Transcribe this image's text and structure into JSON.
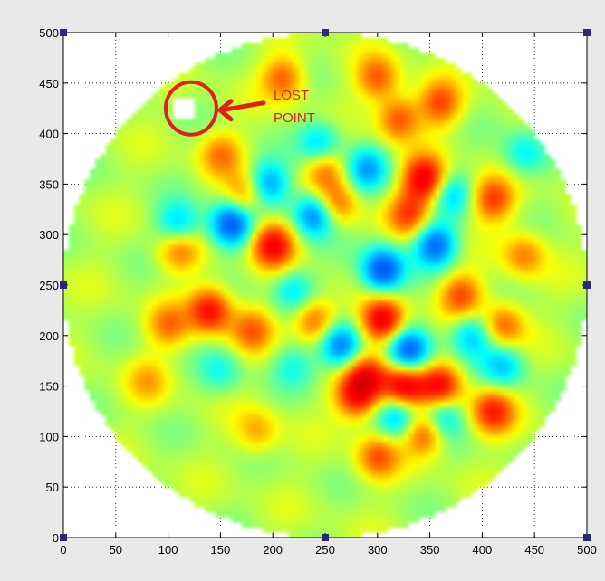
{
  "annotation": {
    "line1": "LOST",
    "line2": "POINT",
    "color": "#e0201c"
  },
  "colors": {
    "figure_bg": "#e9e9e9",
    "plot_bg": "#ffffff",
    "marker": "#2a2a7a",
    "jet_low": "#1010c0",
    "jet_mid": "#a8f0ff",
    "jet_high": "#d01010"
  },
  "chart_data": {
    "type": "heatmap",
    "title": "",
    "xlabel": "",
    "ylabel": "",
    "xlim": [
      0,
      500
    ],
    "ylim": [
      0,
      500
    ],
    "xticks": [
      0,
      50,
      100,
      150,
      200,
      250,
      300,
      350,
      400,
      450,
      500
    ],
    "yticks": [
      0,
      50,
      100,
      150,
      200,
      250,
      300,
      350,
      400,
      450,
      500
    ],
    "grid": true,
    "grid_style": "dotted",
    "colormap": "jet",
    "mask": {
      "shape": "circle",
      "center": [
        250,
        250
      ],
      "radius": 250
    },
    "lost_point": {
      "x": 115,
      "y": 425
    },
    "corner_markers": [
      {
        "x": 0,
        "y": 0
      },
      {
        "x": 250,
        "y": 0
      },
      {
        "x": 500,
        "y": 0
      },
      {
        "x": 0,
        "y": 250
      },
      {
        "x": 500,
        "y": 250
      },
      {
        "x": 0,
        "y": 500
      },
      {
        "x": 250,
        "y": 500
      },
      {
        "x": 500,
        "y": 500
      }
    ],
    "blobs": [
      {
        "x": 345,
        "y": 355,
        "v": 1.0
      },
      {
        "x": 200,
        "y": 290,
        "v": 0.95
      },
      {
        "x": 305,
        "y": 215,
        "v": 1.0
      },
      {
        "x": 140,
        "y": 225,
        "v": 0.85
      },
      {
        "x": 325,
        "y": 150,
        "v": 0.95
      },
      {
        "x": 280,
        "y": 140,
        "v": 0.8
      },
      {
        "x": 360,
        "y": 150,
        "v": 0.85
      },
      {
        "x": 410,
        "y": 125,
        "v": 0.75
      },
      {
        "x": 330,
        "y": 320,
        "v": 0.6
      },
      {
        "x": 260,
        "y": 330,
        "v": 0.55
      },
      {
        "x": 320,
        "y": 415,
        "v": 0.6
      },
      {
        "x": 210,
        "y": 455,
        "v": 0.55
      },
      {
        "x": 300,
        "y": 455,
        "v": 0.55
      },
      {
        "x": 360,
        "y": 430,
        "v": 0.6
      },
      {
        "x": 410,
        "y": 335,
        "v": 0.65
      },
      {
        "x": 180,
        "y": 205,
        "v": 0.5
      },
      {
        "x": 240,
        "y": 215,
        "v": 0.6
      },
      {
        "x": 380,
        "y": 240,
        "v": 0.6
      },
      {
        "x": 420,
        "y": 210,
        "v": 0.55
      },
      {
        "x": 100,
        "y": 210,
        "v": 0.45
      },
      {
        "x": 110,
        "y": 285,
        "v": 0.5
      },
      {
        "x": 175,
        "y": 340,
        "v": 0.5
      },
      {
        "x": 250,
        "y": 365,
        "v": 0.5
      },
      {
        "x": 150,
        "y": 380,
        "v": 0.45
      },
      {
        "x": 345,
        "y": 105,
        "v": 0.7
      },
      {
        "x": 300,
        "y": 80,
        "v": 0.55
      },
      {
        "x": 440,
        "y": 280,
        "v": 0.45
      },
      {
        "x": 290,
        "y": 160,
        "v": 0.75
      },
      {
        "x": 80,
        "y": 155,
        "v": 0.3
      },
      {
        "x": 185,
        "y": 105,
        "v": 0.35
      },
      {
        "x": 160,
        "y": 310,
        "v": -0.95
      },
      {
        "x": 240,
        "y": 320,
        "v": -0.85
      },
      {
        "x": 305,
        "y": 265,
        "v": -1.0
      },
      {
        "x": 355,
        "y": 290,
        "v": -0.85
      },
      {
        "x": 330,
        "y": 185,
        "v": -0.9
      },
      {
        "x": 265,
        "y": 190,
        "v": -0.85
      },
      {
        "x": 195,
        "y": 350,
        "v": -0.7
      },
      {
        "x": 110,
        "y": 310,
        "v": -0.55
      },
      {
        "x": 290,
        "y": 365,
        "v": -0.6
      },
      {
        "x": 245,
        "y": 390,
        "v": -0.55
      },
      {
        "x": 320,
        "y": 120,
        "v": -0.6
      },
      {
        "x": 360,
        "y": 120,
        "v": -0.6
      },
      {
        "x": 390,
        "y": 200,
        "v": -0.55
      },
      {
        "x": 420,
        "y": 170,
        "v": -0.5
      },
      {
        "x": 220,
        "y": 245,
        "v": -0.45
      },
      {
        "x": 370,
        "y": 340,
        "v": -0.45
      },
      {
        "x": 150,
        "y": 165,
        "v": -0.3
      },
      {
        "x": 440,
        "y": 380,
        "v": -0.4
      },
      {
        "x": 220,
        "y": 170,
        "v": -0.3
      }
    ]
  }
}
